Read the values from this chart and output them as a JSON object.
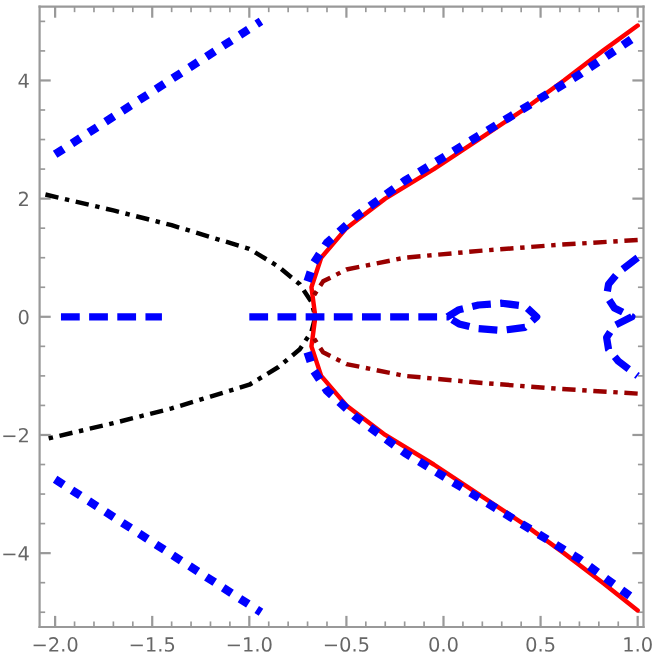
{
  "chart_data": {
    "type": "line",
    "xlim": [
      -2.08,
      1.03
    ],
    "ylim": [
      -5.25,
      5.25
    ],
    "xticks": [
      {
        "value": -2.0,
        "label": "−2.0"
      },
      {
        "value": -1.5,
        "label": "−1.5"
      },
      {
        "value": -1.0,
        "label": "−1.0"
      },
      {
        "value": -0.5,
        "label": "−0.5"
      },
      {
        "value": 0.0,
        "label": "0.0"
      },
      {
        "value": 0.5,
        "label": "0.5"
      },
      {
        "value": 1.0,
        "label": "1.0"
      }
    ],
    "yticks": [
      {
        "value": -4,
        "label": "−4"
      },
      {
        "value": -2,
        "label": "−2"
      },
      0,
      2,
      4
    ],
    "grid": false,
    "legend": false,
    "series": [
      {
        "color": "#0000ff",
        "line_style": "dotted",
        "x": [
          -2.0,
          -0.94
        ],
        "values": [
          2.75,
          5.0
        ]
      },
      {
        "color": "#0000ff",
        "line_style": "dotted",
        "x": [
          -2.0,
          -0.94
        ],
        "values": [
          -2.75,
          -5.0
        ]
      },
      {
        "color": "#0000ff",
        "line_style": "dashed",
        "x": [
          -1.97,
          -1.45
        ],
        "values": [
          0,
          0
        ]
      },
      {
        "color": "#000000",
        "line_style": "dashdot",
        "x": [
          -2.05,
          -1.7,
          -1.4,
          -1.2,
          -1.0,
          -0.85,
          -0.74,
          -0.68,
          -0.66,
          -0.68,
          -0.74,
          -0.85,
          -1.0,
          -1.2,
          -1.4,
          -1.7,
          -2.05
        ],
        "values": [
          2.07,
          1.8,
          1.55,
          1.35,
          1.15,
          0.85,
          0.55,
          0.25,
          0,
          -0.25,
          -0.55,
          -0.85,
          -1.15,
          -1.35,
          -1.55,
          -1.8,
          -2.07
        ]
      },
      {
        "color": "#ff0000",
        "line_style": "solid",
        "x": [
          1.0,
          0.82,
          0.62,
          0.41,
          0.18,
          -0.05,
          -0.3,
          -0.5,
          -0.63,
          -0.68,
          -0.66,
          -0.68,
          -0.63,
          -0.5,
          -0.3,
          -0.05,
          0.18,
          0.41,
          0.62,
          0.82,
          1.0
        ],
        "values": [
          4.93,
          4.5,
          4.0,
          3.5,
          3.0,
          2.5,
          2.0,
          1.5,
          1.0,
          0.5,
          0,
          -0.5,
          -1.0,
          -1.5,
          -2.0,
          -2.5,
          -3.0,
          -3.5,
          -4.0,
          -4.5,
          -4.97
        ]
      },
      {
        "color": "#0000ff",
        "line_style": "dotted",
        "x": [
          -0.7,
          -0.67,
          -0.6,
          -0.45,
          -0.2,
          0.1,
          0.4,
          0.7,
          0.97
        ],
        "values": [
          0.6,
          0.9,
          1.25,
          1.7,
          2.3,
          2.9,
          3.5,
          4.1,
          4.7
        ]
      },
      {
        "color": "#0000ff",
        "line_style": "dotted",
        "x": [
          -0.7,
          -0.67,
          -0.6,
          -0.45,
          -0.2,
          0.1,
          0.4,
          0.7,
          0.97
        ],
        "values": [
          -0.6,
          -0.9,
          -1.25,
          -1.7,
          -2.3,
          -2.9,
          -3.5,
          -4.1,
          -4.75
        ]
      },
      {
        "color": "#990000",
        "line_style": "dashdot",
        "x": [
          1.0,
          0.6,
          0.2,
          -0.2,
          -0.5,
          -0.62,
          -0.68
        ],
        "values": [
          1.3,
          1.22,
          1.12,
          1.0,
          0.8,
          0.6,
          0.3
        ]
      },
      {
        "color": "#990000",
        "line_style": "dashdot",
        "x": [
          1.0,
          0.6,
          0.2,
          -0.2,
          -0.5,
          -0.62,
          -0.68
        ],
        "values": [
          -1.3,
          -1.22,
          -1.12,
          -1.0,
          -0.8,
          -0.6,
          -0.3
        ]
      },
      {
        "color": "#0000ff",
        "line_style": "dashed",
        "x": [
          -1.0,
          0.02,
          0.08,
          0.18,
          0.3,
          0.42,
          0.48,
          0.42,
          0.3,
          0.18,
          0.08,
          0.02
        ],
        "values": [
          0,
          0,
          0.12,
          0.2,
          0.23,
          0.18,
          0,
          -0.18,
          -0.23,
          -0.2,
          -0.12,
          0
        ]
      },
      {
        "color": "#0000ff",
        "line_style": "dashed",
        "x": [
          1.0,
          0.9,
          0.85,
          0.84,
          0.88,
          0.97,
          0.88,
          0.84,
          0.85,
          0.9,
          1.0
        ],
        "values": [
          1.0,
          0.75,
          0.55,
          0.35,
          0.15,
          0,
          -0.15,
          -0.35,
          -0.55,
          -0.75,
          -1.0
        ]
      }
    ]
  }
}
